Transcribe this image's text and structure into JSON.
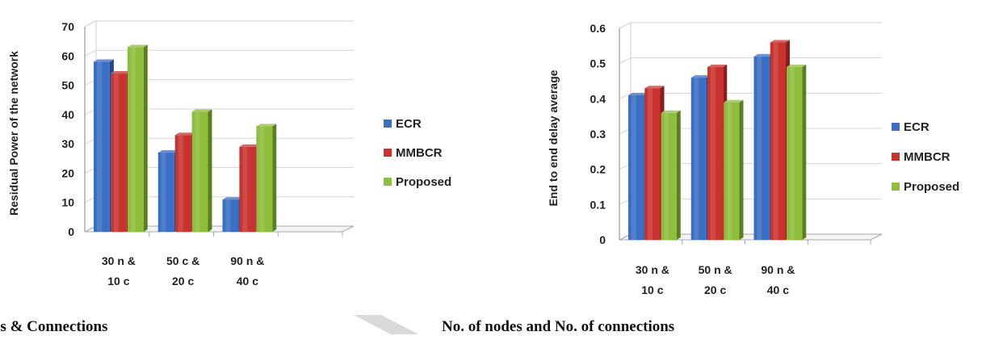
{
  "captions": {
    "left": "es & Connections",
    "right": "No. of nodes and No. of connections"
  },
  "chart_data": [
    {
      "type": "bar",
      "title": "",
      "xlabel": "",
      "ylabel": "Residual Power of the network",
      "categories": [
        [
          "30 n &",
          "10 c"
        ],
        [
          "50 c &",
          "20 c"
        ],
        [
          "90 n &",
          "40 c"
        ]
      ],
      "series": [
        {
          "name": "ECR",
          "values": [
            58,
            27,
            11
          ],
          "color": "#3a6fc4"
        },
        {
          "name": "MMBCR",
          "values": [
            54,
            33,
            29
          ],
          "color": "#c8332f"
        },
        {
          "name": "Proposed",
          "values": [
            63,
            41,
            36
          ],
          "color": "#8dbe3c"
        }
      ],
      "ylim": [
        0,
        70
      ],
      "yticks": [
        "0",
        "10",
        "20",
        "30",
        "40",
        "50",
        "60",
        "70"
      ],
      "grid": true,
      "legend": "right"
    },
    {
      "type": "bar",
      "title": "",
      "xlabel": "",
      "ylabel": "End to end delay average",
      "categories": [
        [
          "30 n &",
          "10 c"
        ],
        [
          "50 n &",
          "20 c"
        ],
        [
          "90 n &",
          "40 c"
        ]
      ],
      "series": [
        {
          "name": "ECR",
          "values": [
            0.41,
            0.46,
            0.52
          ],
          "color": "#3a6fc4"
        },
        {
          "name": "MMBCR",
          "values": [
            0.43,
            0.49,
            0.56
          ],
          "color": "#c8332f"
        },
        {
          "name": "Proposed",
          "values": [
            0.36,
            0.39,
            0.49
          ],
          "color": "#8dbe3c"
        }
      ],
      "ylim": [
        0,
        0.6
      ],
      "yticks": [
        "0",
        "0.1",
        "0.2",
        "0.3",
        "0.4",
        "0.5",
        "0.6"
      ],
      "grid": true,
      "legend": "right"
    }
  ]
}
